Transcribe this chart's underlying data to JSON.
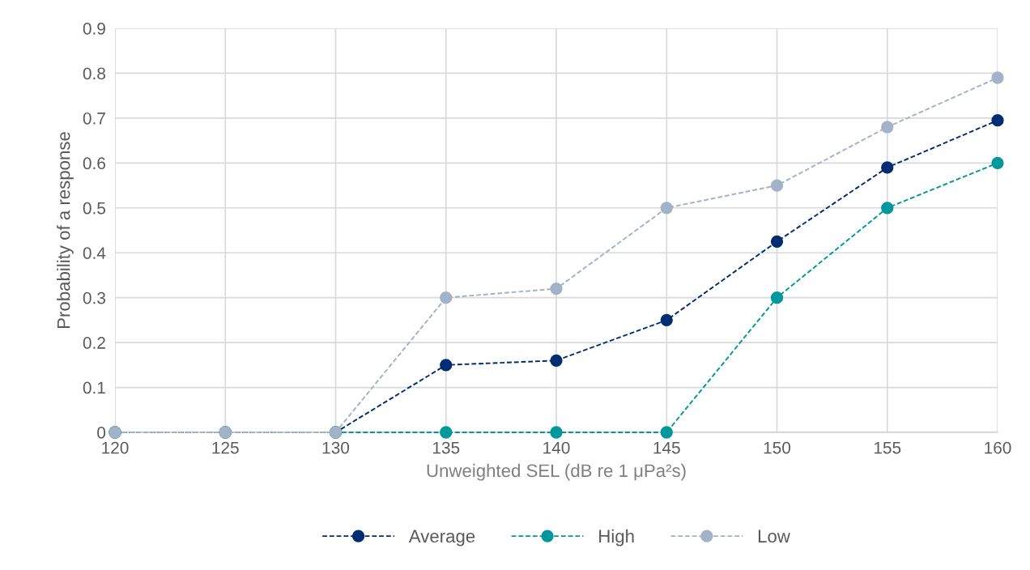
{
  "chart_data": {
    "type": "line",
    "xlabel": "Unweighted SEL (dB re 1 μPa²s)",
    "ylabel": "Probability of a response",
    "x": [
      120,
      125,
      130,
      135,
      140,
      145,
      150,
      155,
      160
    ],
    "series": [
      {
        "name": "Average",
        "color": "#002d72",
        "values": [
          0,
          0,
          0,
          0.15,
          0.16,
          0.25,
          0.425,
          0.59,
          0.695
        ]
      },
      {
        "name": "High",
        "color": "#00979d",
        "values": [
          0,
          0,
          0,
          0,
          0,
          0,
          0.3,
          0.5,
          0.6
        ]
      },
      {
        "name": "Low",
        "color": "#a2b2c8",
        "values": [
          0,
          0,
          0,
          0.3,
          0.32,
          0.5,
          0.55,
          0.68,
          0.79
        ]
      }
    ],
    "xlim": [
      120,
      160
    ],
    "xticks": [
      120,
      125,
      130,
      135,
      140,
      145,
      150,
      155,
      160
    ],
    "ylim": [
      0,
      0.9
    ],
    "yticks": [
      0,
      0.1,
      0.2,
      0.3,
      0.4,
      0.5,
      0.6,
      0.7,
      0.8,
      0.9
    ],
    "grid": true,
    "legend": "bottom",
    "marker": "circle",
    "line_style": "dashed"
  }
}
